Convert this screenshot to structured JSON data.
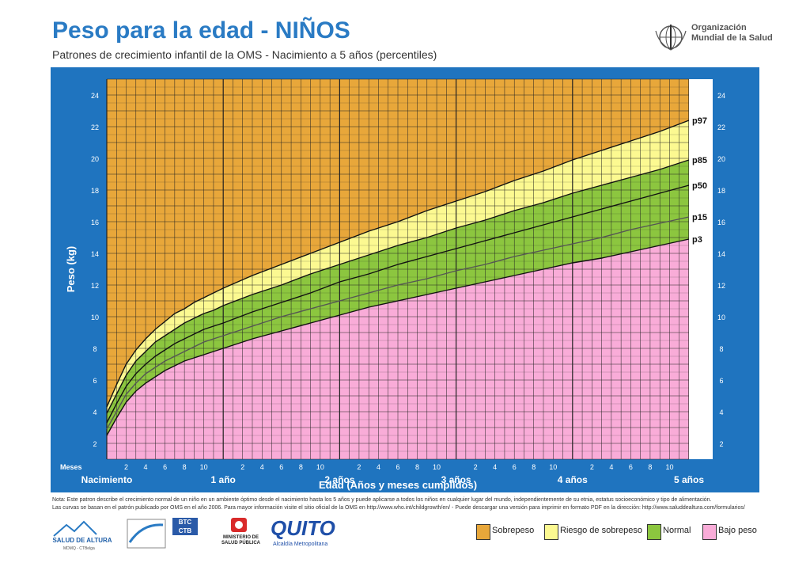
{
  "header": {
    "title": "Peso para la edad - NIÑOS",
    "subtitle": "Patrones de crecimiento infantil de la OMS - Nacimiento a 5 años (percentiles)",
    "org_line1": "Organización",
    "org_line2": "Mundial de la Salud"
  },
  "note": {
    "line1": "Nota: Este patron describe el crecimiento normal de un niño en un ambiente óptimo desde el nacimiento hasta los 5 años y puede aplicarse a todos los niños en cualquier lugar del mundo, independientemente de su etnia, estatus socioeconómico y tipo de alimentación.",
    "line2": "Las curvas se basan en el patrón publicado por OMS en el año 2006. Para mayor información visite el sitio oficial de la OMS en http://www.who.int/childgrowth/en/ - Puede descargar una versión para imprimir en formato PDF en la dirección: http://www.saluddealtura.com/formularios/"
  },
  "legend": [
    {
      "label": "Sobrepeso",
      "color": "#e8a73a"
    },
    {
      "label": "Riesgo de sobrepeso",
      "color": "#fcf991"
    },
    {
      "label": "Normal",
      "color": "#8cc63f"
    },
    {
      "label": "Bajo peso",
      "color": "#f9acd8"
    }
  ],
  "logos": {
    "salud_altura": "SALUD DE ALTURA",
    "salud_altura_sub": "MDMQ - CTBelga",
    "btc1": "BTC",
    "btc2": "CTB",
    "ministerio1": "MINISTERIO DE",
    "ministerio2": "SALUD PÚBLICA",
    "quito": "QUITO",
    "quito_sub": "Alcaldía Metropolitana"
  },
  "chart_data": {
    "type": "line",
    "title": "Peso para la edad - NIÑOS",
    "xlabel": "Edad (Años y meses cumplidos)",
    "ylabel": "Peso (kg)",
    "x_unit_label": "Meses",
    "xlim": [
      0,
      60
    ],
    "ylim": [
      1,
      25
    ],
    "y_ticks": [
      2,
      4,
      6,
      8,
      10,
      12,
      14,
      16,
      18,
      20,
      22,
      24
    ],
    "month_ticks": [
      "2",
      "4",
      "6",
      "8",
      "10"
    ],
    "year_labels": [
      "Nacimiento",
      "1 año",
      "2 años",
      "3 años",
      "4 años",
      "5 años"
    ],
    "grid": true,
    "x": [
      0,
      1,
      2,
      3,
      4,
      5,
      6,
      7,
      8,
      9,
      10,
      11,
      12,
      15,
      18,
      21,
      24,
      27,
      30,
      33,
      36,
      39,
      42,
      45,
      48,
      51,
      54,
      57,
      60
    ],
    "series": [
      {
        "name": "p97",
        "values": [
          4.3,
          5.7,
          7.0,
          7.9,
          8.6,
          9.2,
          9.7,
          10.2,
          10.5,
          10.9,
          11.2,
          11.5,
          11.8,
          12.6,
          13.3,
          14.0,
          14.7,
          15.4,
          16.0,
          16.7,
          17.3,
          17.9,
          18.6,
          19.2,
          19.9,
          20.5,
          21.1,
          21.7,
          22.4
        ]
      },
      {
        "name": "p85",
        "values": [
          3.9,
          5.1,
          6.3,
          7.2,
          7.8,
          8.4,
          8.8,
          9.2,
          9.6,
          9.9,
          10.2,
          10.4,
          10.7,
          11.4,
          12.0,
          12.7,
          13.3,
          13.9,
          14.5,
          15.0,
          15.6,
          16.1,
          16.7,
          17.2,
          17.8,
          18.3,
          18.8,
          19.3,
          19.9
        ]
      },
      {
        "name": "p50",
        "values": [
          3.3,
          4.5,
          5.6,
          6.4,
          7.0,
          7.5,
          7.9,
          8.3,
          8.6,
          8.9,
          9.2,
          9.4,
          9.6,
          10.3,
          10.9,
          11.5,
          12.2,
          12.7,
          13.3,
          13.8,
          14.3,
          14.8,
          15.3,
          15.8,
          16.3,
          16.8,
          17.3,
          17.8,
          18.3
        ]
      },
      {
        "name": "p15",
        "values": [
          2.9,
          4.0,
          5.1,
          5.8,
          6.4,
          6.8,
          7.2,
          7.5,
          7.8,
          8.1,
          8.4,
          8.6,
          8.8,
          9.4,
          10.0,
          10.5,
          11.0,
          11.5,
          12.0,
          12.4,
          12.9,
          13.3,
          13.8,
          14.2,
          14.6,
          15.0,
          15.5,
          15.9,
          16.3
        ]
      },
      {
        "name": "p3",
        "values": [
          2.5,
          3.6,
          4.6,
          5.3,
          5.8,
          6.2,
          6.6,
          6.9,
          7.2,
          7.4,
          7.6,
          7.8,
          8.0,
          8.6,
          9.1,
          9.6,
          10.1,
          10.6,
          11.0,
          11.4,
          11.8,
          12.2,
          12.6,
          13.0,
          13.4,
          13.7,
          14.1,
          14.5,
          14.9
        ]
      }
    ],
    "zones": [
      {
        "label": "Sobrepeso",
        "color": "#e8a73a"
      },
      {
        "label": "Riesgo de sobrepeso",
        "color": "#fcf991"
      },
      {
        "label": "Normal",
        "color": "#8cc63f"
      },
      {
        "label": "Bajo peso",
        "color": "#f9acd8"
      }
    ]
  }
}
